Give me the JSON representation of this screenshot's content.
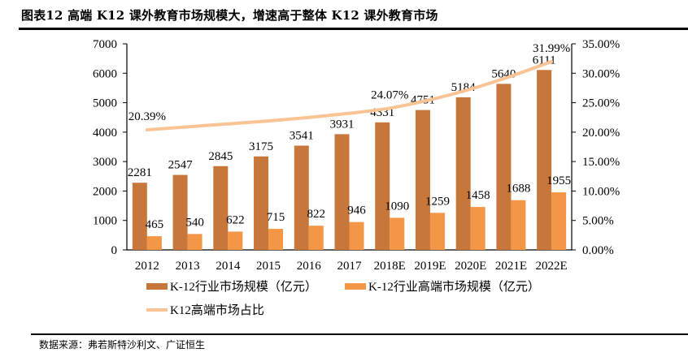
{
  "title": "图表12 高端 K12 课外教育市场规模大，增速高于整体 K12 课外教育市场",
  "source": "数据来源：弗若斯特沙利文、广证恒生",
  "chart_data": {
    "type": "bar",
    "title": "图表12 高端 K12 课外教育市场规模大，增速高于整体 K12 课外教育市场",
    "categories": [
      "2012",
      "2013",
      "2014",
      "2015",
      "2016",
      "2017",
      "2018E",
      "2019E",
      "2020E",
      "2021E",
      "2022E"
    ],
    "series": [
      {
        "name": "K-12行业市场规模（亿元）",
        "type": "bar",
        "axis": "left",
        "color": "#C8773A",
        "values": [
          2281,
          2547,
          2845,
          3175,
          3541,
          3931,
          4331,
          4751,
          5184,
          5640,
          6111
        ]
      },
      {
        "name": "K-12行业高端市场规模（亿元）",
        "type": "bar",
        "axis": "left",
        "color": "#F39646",
        "values": [
          465,
          540,
          622,
          715,
          822,
          946,
          1090,
          1259,
          1458,
          1688,
          1955
        ]
      },
      {
        "name": "K12高端市场占比",
        "type": "line",
        "axis": "right",
        "color": "#F9C394",
        "values": [
          20.39,
          20.9,
          21.4,
          21.9,
          22.5,
          23.2,
          24.07,
          25.5,
          27.3,
          29.5,
          31.99
        ],
        "labeled_points": {
          "0": "20.39%",
          "6": "24.07%",
          "10": "31.99%"
        }
      }
    ],
    "left_axis": {
      "ylim": [
        0,
        7000
      ],
      "ticks": [
        "0",
        "1000",
        "2000",
        "3000",
        "4000",
        "5000",
        "6000",
        "7000"
      ]
    },
    "right_axis": {
      "ylim": [
        0,
        35
      ],
      "ticks": [
        "0.00%",
        "5.00%",
        "10.00%",
        "15.00%",
        "20.00%",
        "25.00%",
        "30.00%",
        "35.00%"
      ]
    },
    "xlabel": "",
    "ylabel": "",
    "grid": false,
    "legend_position": "bottom"
  }
}
